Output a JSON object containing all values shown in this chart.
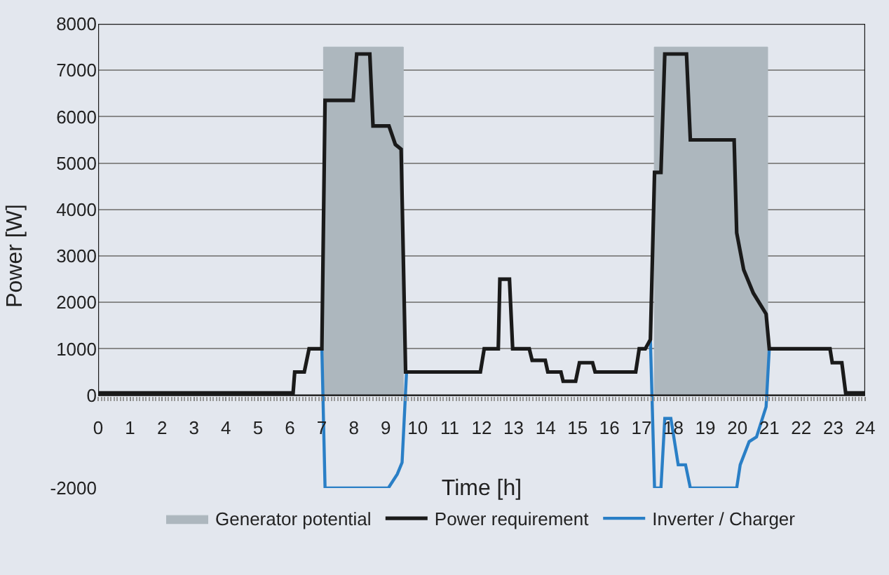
{
  "chart_data": {
    "type": "line",
    "xlabel": "Time [h]",
    "ylabel": "Power [W]",
    "xlim": [
      0,
      24
    ],
    "xticks": [
      0,
      1,
      2,
      3,
      4,
      5,
      6,
      7,
      8,
      9,
      10,
      11,
      12,
      13,
      14,
      15,
      16,
      17,
      18,
      19,
      20,
      21,
      22,
      23,
      24
    ],
    "ylim": [
      -2000,
      8000
    ],
    "yticks": [
      -2000,
      0,
      1000,
      2000,
      3000,
      4000,
      5000,
      6000,
      7000,
      8000
    ],
    "grid": "y",
    "legend": "bottom",
    "marker": "none",
    "line_style": "solid",
    "series": [
      {
        "name": "Generator potential",
        "type": "area",
        "color": "#adb7be",
        "x": [
          7.05,
          9.55,
          13,
          17.4,
          20.95
        ],
        "values": [
          7500,
          7500,
          null,
          7500,
          7500
        ]
      },
      {
        "name": "Power requirement",
        "color": "#1a1a1a",
        "x": [
          0,
          6.1,
          6.15,
          6.45,
          6.6,
          7.0,
          7.1,
          7.98,
          8.09,
          8.5,
          8.6,
          9.1,
          9.3,
          9.48,
          9.62,
          11.96,
          12.08,
          12.52,
          12.57,
          12.87,
          12.97,
          13.49,
          13.58,
          13.99,
          14.07,
          14.48,
          14.55,
          14.94,
          15.06,
          15.47,
          15.55,
          16.82,
          16.93,
          17.12,
          17.28,
          17.41,
          17.61,
          17.73,
          18.41,
          18.53,
          19.9,
          19.98,
          20.2,
          20.5,
          20.9,
          21.0,
          22.9,
          22.97,
          23.27,
          23.39,
          24
        ],
        "values": [
          50,
          50,
          500,
          500,
          1000,
          1000,
          6350,
          6350,
          7350,
          7350,
          5800,
          5800,
          5400,
          5300,
          500,
          500,
          1000,
          1000,
          2500,
          2500,
          1000,
          1000,
          750,
          750,
          500,
          500,
          300,
          300,
          700,
          700,
          500,
          500,
          1000,
          1000,
          1200,
          4800,
          4800,
          7350,
          7350,
          5500,
          5500,
          3500,
          2700,
          2200,
          1750,
          1000,
          1000,
          700,
          700,
          50,
          50
        ]
      },
      {
        "name": "Inverter / Charger",
        "color": "#2a7fc6",
        "x": [
          7.0,
          7.1,
          9.08,
          9.36,
          9.51,
          9.65,
          null,
          17.28,
          17.41,
          17.61,
          17.73,
          17.92,
          18.15,
          18.38,
          18.53,
          19.98,
          20.09,
          20.37,
          20.6,
          20.9,
          21.0
        ],
        "values": [
          1000,
          -2000,
          -2000,
          -1700,
          -1450,
          500,
          null,
          1200,
          -2000,
          -2000,
          -500,
          -500,
          -1500,
          -1500,
          -2000,
          -2000,
          -1500,
          -1000,
          -900,
          -250,
          1000
        ]
      }
    ]
  }
}
